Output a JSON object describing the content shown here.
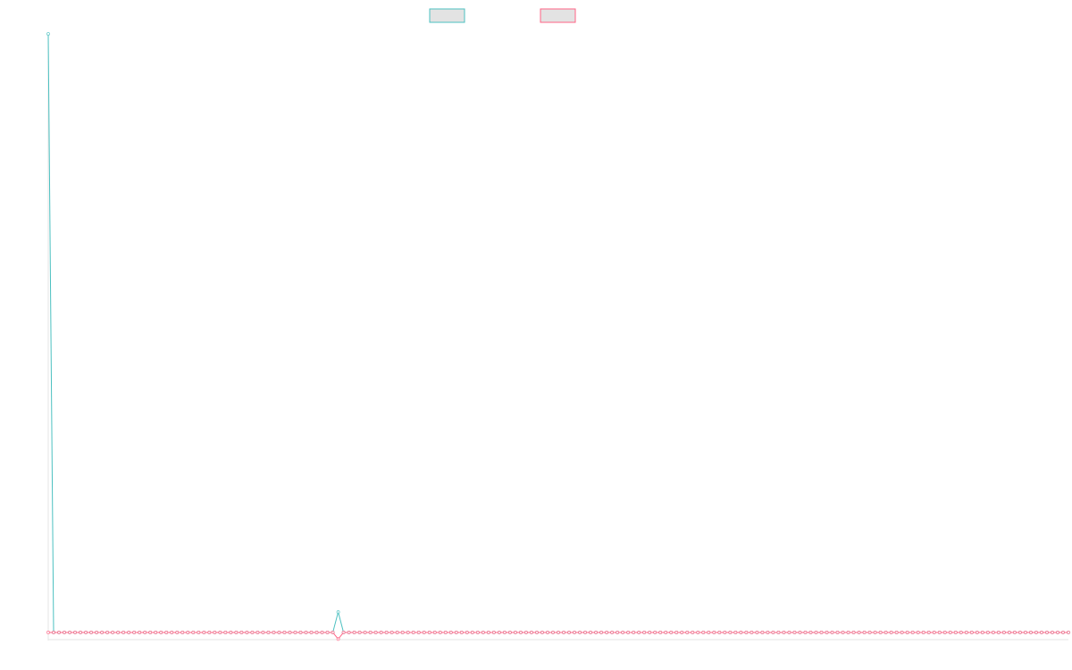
{
  "chart_data": {
    "type": "line",
    "title": "",
    "xlabel": "",
    "ylabel": "",
    "grid": false,
    "legend_position": "top-center",
    "x": [
      0,
      1,
      2,
      3,
      4,
      5,
      6,
      7,
      8,
      9,
      10,
      11,
      12,
      13,
      14,
      15,
      16,
      17,
      18,
      19,
      20,
      21,
      22,
      23,
      24,
      25,
      26,
      27,
      28,
      29,
      30,
      31,
      32,
      33,
      34,
      35,
      36,
      37,
      38,
      39,
      40,
      41,
      42,
      43,
      44,
      45,
      46,
      47,
      48,
      49,
      50,
      51,
      52,
      53,
      54,
      55,
      56,
      57,
      58,
      59,
      60,
      61,
      62,
      63,
      64,
      65,
      66,
      67,
      68,
      69,
      70,
      71,
      72,
      73,
      74,
      75,
      76,
      77,
      78,
      79,
      80,
      81,
      82,
      83,
      84,
      85,
      86,
      87,
      88,
      89,
      90,
      91,
      92,
      93,
      94,
      95,
      96,
      97,
      98,
      99,
      100,
      101,
      102,
      103,
      104,
      105,
      106,
      107,
      108,
      109,
      110,
      111,
      112,
      113,
      114,
      115,
      116,
      117,
      118,
      119,
      120,
      121,
      122,
      123,
      124,
      125,
      126,
      127,
      128,
      129,
      130,
      131,
      132,
      133,
      134,
      135,
      136,
      137,
      138,
      139,
      140,
      141,
      142,
      143,
      144,
      145,
      146,
      147,
      148,
      149,
      150,
      151,
      152,
      153,
      154,
      155,
      156,
      157,
      158,
      159,
      160,
      161,
      162,
      163,
      164,
      165,
      166,
      167,
      168,
      169,
      170,
      171,
      172,
      173,
      174,
      175,
      176,
      177,
      178,
      179,
      180,
      181,
      182,
      183,
      184,
      185,
      186,
      187,
      188,
      189,
      190
    ],
    "ylim": [
      -1.2,
      100
    ],
    "series": [
      {
        "color": "#4bc0c0",
        "fill": "#e3e3e3",
        "values": [
          100,
          0,
          0,
          0,
          0,
          0,
          0,
          0,
          0,
          0,
          0,
          0,
          0,
          0,
          0,
          0,
          0,
          0,
          0,
          0,
          0,
          0,
          0,
          0,
          0,
          0,
          0,
          0,
          0,
          0,
          0,
          0,
          0,
          0,
          0,
          0,
          0,
          0,
          0,
          0,
          0,
          0,
          0,
          0,
          0,
          0,
          0,
          0,
          0,
          0,
          0,
          0,
          0,
          0,
          3.4,
          0,
          0,
          0,
          0,
          0,
          0,
          0,
          0,
          0,
          0,
          0,
          0,
          0,
          0,
          0,
          0,
          0,
          0,
          0,
          0,
          0,
          0,
          0,
          0,
          0,
          0,
          0,
          0,
          0,
          0,
          0,
          0,
          0,
          0,
          0,
          0,
          0,
          0,
          0,
          0,
          0,
          0,
          0,
          0,
          0,
          0,
          0,
          0,
          0,
          0,
          0,
          0,
          0,
          0,
          0,
          0,
          0,
          0,
          0,
          0,
          0,
          0,
          0,
          0,
          0,
          0,
          0,
          0,
          0,
          0,
          0,
          0,
          0,
          0,
          0,
          0,
          0,
          0,
          0,
          0,
          0,
          0,
          0,
          0,
          0,
          0,
          0,
          0,
          0,
          0,
          0,
          0,
          0,
          0,
          0,
          0,
          0,
          0,
          0,
          0,
          0,
          0,
          0,
          0,
          0,
          0,
          0,
          0,
          0,
          0,
          0,
          0,
          0,
          0,
          0,
          0,
          0,
          0,
          0,
          0,
          0,
          0,
          0,
          0,
          0,
          0,
          0,
          0,
          0,
          0,
          0,
          0,
          0,
          0,
          0,
          0
        ]
      },
      {
        "color": "#ff6384",
        "fill": "#e3e3e3",
        "values": [
          0,
          0,
          0,
          0,
          0,
          0,
          0,
          0,
          0,
          0,
          0,
          0,
          0,
          0,
          0,
          0,
          0,
          0,
          0,
          0,
          0,
          0,
          0,
          0,
          0,
          0,
          0,
          0,
          0,
          0,
          0,
          0,
          0,
          0,
          0,
          0,
          0,
          0,
          0,
          0,
          0,
          0,
          0,
          0,
          0,
          0,
          0,
          0,
          0,
          0,
          0,
          0,
          0,
          0,
          -1.1,
          0,
          0,
          0,
          0,
          0,
          0,
          0,
          0,
          0,
          0,
          0,
          0,
          0,
          0,
          0,
          0,
          0,
          0,
          0,
          0,
          0,
          0,
          0,
          0,
          0,
          0,
          0,
          0,
          0,
          0,
          0,
          0,
          0,
          0,
          0,
          0,
          0,
          0,
          0,
          0,
          0,
          0,
          0,
          0,
          0,
          0,
          0,
          0,
          0,
          0,
          0,
          0,
          0,
          0,
          0,
          0,
          0,
          0,
          0,
          0,
          0,
          0,
          0,
          0,
          0,
          0,
          0,
          0,
          0,
          0,
          0,
          0,
          0,
          0,
          0,
          0,
          0,
          0,
          0,
          0,
          0,
          0,
          0,
          0,
          0,
          0,
          0,
          0,
          0,
          0,
          0,
          0,
          0,
          0,
          0,
          0,
          0,
          0,
          0,
          0,
          0,
          0,
          0,
          0,
          0,
          0,
          0,
          0,
          0,
          0,
          0,
          0,
          0,
          0,
          0,
          0,
          0,
          0,
          0,
          0,
          0,
          0,
          0,
          0,
          0,
          0,
          0,
          0,
          0,
          0,
          0,
          0,
          0,
          0,
          0,
          0
        ]
      }
    ]
  }
}
